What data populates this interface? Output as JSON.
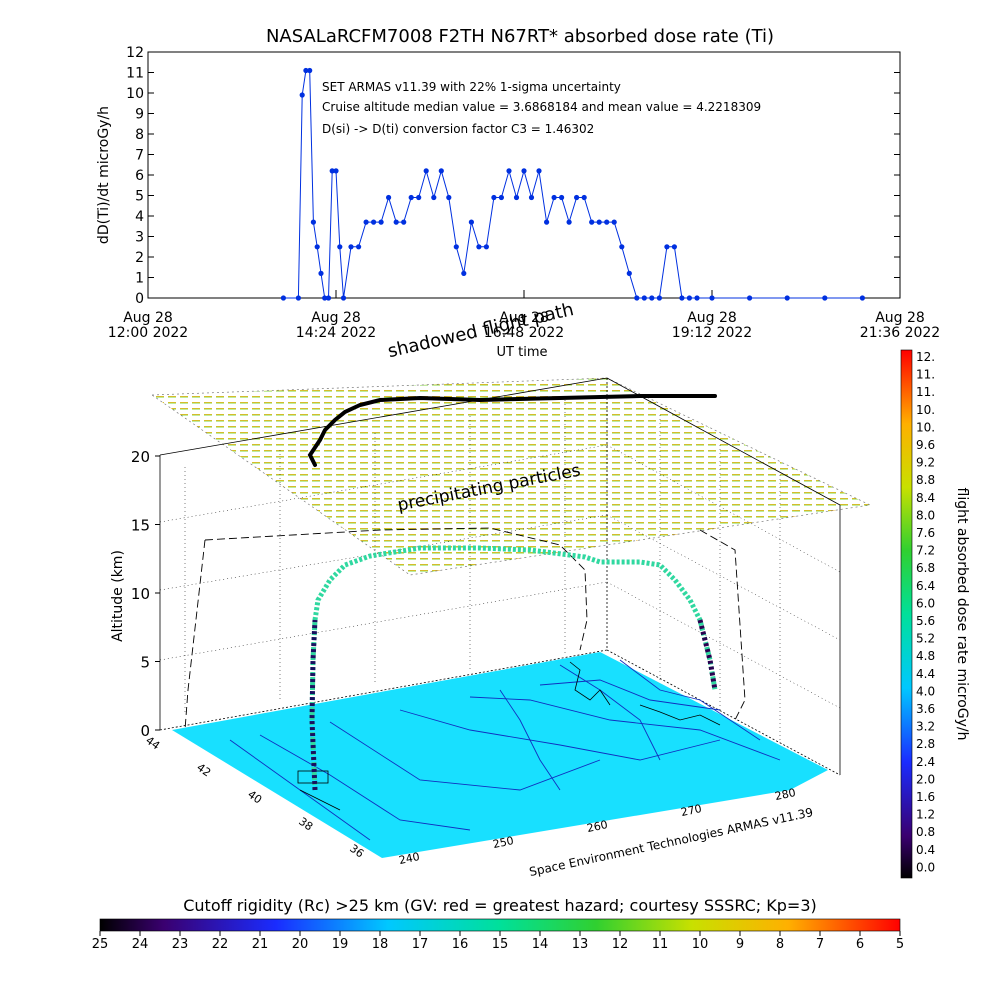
{
  "top_chart": {
    "title": "NASALaRCFM7008  F2TH N67RT* absorbed dose rate (Ti)",
    "ylabel": "dD(Ti)/dt microGy/h",
    "xlabel": "UT time",
    "annotations": [
      "SET ARMAS v11.39 with 22% 1-sigma uncertainty",
      "Cruise altitude median value = 3.6868184 and mean value = 4.2218309",
      "D(si) -> D(ti) conversion factor C3 = 1.46302"
    ],
    "xticks": [
      {
        "date": "Aug 28",
        "time": "12:00 2022"
      },
      {
        "date": "Aug 28",
        "time": "14:24 2022"
      },
      {
        "date": "Aug 28",
        "time": "16:48 2022"
      },
      {
        "date": "Aug 28",
        "time": "19:12 2022"
      },
      {
        "date": "Aug 28",
        "time": "21:36 2022"
      }
    ]
  },
  "scene": {
    "shadowed_label": "shadowed flight path",
    "precip_label": "precipitating particles",
    "altitude_label": "Altitude (km)",
    "credit": "Space Environment Technologies ARMAS v11.39",
    "altitude_ticks": [
      "0",
      "5",
      "10",
      "15",
      "20"
    ],
    "lat_ticks": [
      "44",
      "42",
      "40",
      "38",
      "36"
    ],
    "lon_ticks": [
      "240",
      "250",
      "260",
      "270",
      "280"
    ]
  },
  "right_colorbar": {
    "label": "flight absorbed dose rate microGy/h",
    "ticks": [
      "12.",
      "11.",
      "11.",
      "10.",
      "10.",
      "9.6",
      "9.2",
      "8.8",
      "8.4",
      "8.0",
      "7.6",
      "7.2",
      "6.8",
      "6.4",
      "6.0",
      "5.6",
      "5.2",
      "4.8",
      "4.4",
      "4.0",
      "3.6",
      "3.2",
      "2.8",
      "2.4",
      "2.0",
      "1.6",
      "1.2",
      "0.8",
      "0.4",
      "0.0"
    ]
  },
  "bottom_colorbar": {
    "label": "Cutoff rigidity (Rc) >25 km (GV: red = greatest hazard; courtesy SSSRC; Kp=3)",
    "ticks": [
      "25",
      "24",
      "23",
      "22",
      "21",
      "20",
      "19",
      "18",
      "17",
      "16",
      "15",
      "14",
      "13",
      "12",
      "11",
      "10",
      "9",
      "8",
      "7",
      "6",
      "5"
    ]
  },
  "chart_data": {
    "type": "line",
    "title": "NASALaRCFM7008  F2TH N67RT* absorbed dose rate (Ti)",
    "xlabel": "UT time",
    "ylabel": "dD(Ti)/dt microGy/h",
    "xlim": [
      "2022-08-28 12:00",
      "2022-08-28 22:00"
    ],
    "ylim": [
      0,
      12
    ],
    "x_time_hours": [
      13.8,
      14.0,
      14.05,
      14.1,
      14.15,
      14.2,
      14.25,
      14.3,
      14.35,
      14.4,
      14.45,
      14.5,
      14.55,
      14.6,
      14.7,
      14.8,
      14.9,
      15.0,
      15.1,
      15.2,
      15.3,
      15.4,
      15.5,
      15.6,
      15.7,
      15.8,
      15.9,
      16.0,
      16.1,
      16.2,
      16.3,
      16.4,
      16.5,
      16.6,
      16.7,
      16.8,
      16.9,
      17.0,
      17.1,
      17.2,
      17.3,
      17.4,
      17.5,
      17.6,
      17.7,
      17.8,
      17.9,
      18.0,
      18.1,
      18.2,
      18.3,
      18.4,
      18.5,
      18.6,
      18.7,
      18.8,
      18.9,
      19.0,
      19.1,
      19.2,
      19.3,
      19.5,
      20.0,
      20.5,
      21.0,
      21.5
    ],
    "values": [
      0,
      0,
      9.9,
      11.1,
      11.1,
      3.7,
      2.5,
      1.2,
      0,
      0,
      6.2,
      6.2,
      2.5,
      0,
      2.5,
      2.5,
      3.7,
      3.7,
      3.7,
      4.9,
      3.7,
      3.7,
      4.9,
      4.9,
      6.2,
      4.9,
      6.2,
      4.9,
      2.5,
      1.2,
      3.7,
      2.5,
      2.5,
      4.9,
      4.9,
      6.2,
      4.9,
      6.2,
      4.9,
      6.2,
      3.7,
      4.9,
      4.9,
      3.7,
      4.9,
      4.9,
      3.7,
      3.7,
      3.7,
      3.7,
      2.5,
      1.2,
      0,
      0,
      0,
      0,
      2.5,
      2.5,
      0,
      0,
      0,
      0,
      0,
      0,
      0,
      0
    ]
  }
}
